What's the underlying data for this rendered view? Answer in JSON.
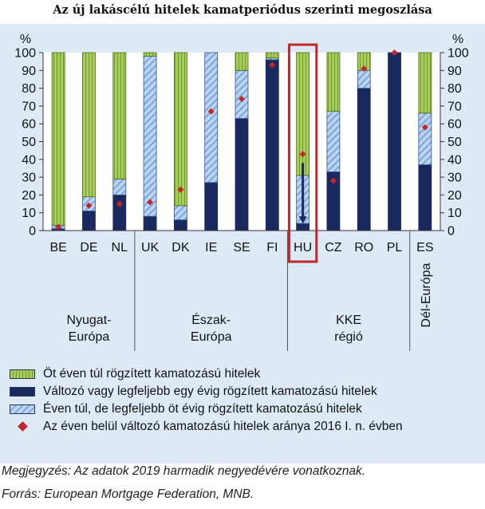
{
  "title": "Az új lakáscélú hitelek kamatperiódus szerinti megoszlása",
  "chart_data": {
    "type": "bar",
    "stacked": true,
    "unit": "%",
    "ylim": [
      0,
      100
    ],
    "yticks": [
      0,
      10,
      20,
      30,
      40,
      50,
      60,
      70,
      80,
      90,
      100
    ],
    "categories": [
      "BE",
      "DE",
      "NL",
      "UK",
      "DK",
      "IE",
      "SE",
      "FI",
      "HU",
      "CZ",
      "RO",
      "PL",
      "ES"
    ],
    "series": [
      {
        "name": "Változó vagy legfeljebb egy évig rögzített kamatozású hitelek",
        "color": "#1a2a5e",
        "values": [
          1,
          11,
          20,
          8,
          6,
          27,
          63,
          96,
          4,
          33,
          80,
          100,
          37
        ]
      },
      {
        "name": "Éven túl, de legfeljebb öt évig rögzített kamatozású hitelek",
        "color": "#a9c7ea",
        "values": [
          2,
          8,
          9,
          90,
          8,
          73,
          27,
          1,
          27,
          34,
          10,
          0,
          29
        ]
      },
      {
        "name": "Öt éven túl rögzített kamatozású hitelek",
        "color": "#a9cd5a",
        "values": [
          97,
          81,
          71,
          2,
          86,
          0,
          10,
          3,
          69,
          33,
          10,
          0,
          34
        ]
      }
    ],
    "markers": {
      "name": "Az éven belül változó kamatozású hitelek aránya 2016 I. n. évben",
      "color": "#c0282d",
      "values": [
        2,
        14,
        15,
        16,
        23,
        67,
        74,
        93,
        43,
        28,
        91,
        100,
        58
      ]
    },
    "groups": [
      {
        "label_lines": [
          "Nyugat-",
          "Európa"
        ],
        "members": [
          "BE",
          "DE",
          "NL"
        ]
      },
      {
        "label_lines": [
          "Észak-",
          "Európa"
        ],
        "members": [
          "UK",
          "DK",
          "IE",
          "SE",
          "FI"
        ]
      },
      {
        "label_lines": [
          "KKE",
          "régió"
        ],
        "members": [
          "HU",
          "CZ",
          "RO",
          "PL"
        ]
      },
      {
        "label_lines": [
          "Dél-Európa"
        ],
        "members": [
          "ES"
        ],
        "vertical": true
      }
    ],
    "highlight": {
      "category": "HU",
      "color": "#c0282d",
      "arrow_from": 38,
      "arrow_to": 4
    }
  },
  "legend": [
    {
      "key": "long",
      "label": "Öt éven túl rögzített kamatozású hitelek"
    },
    {
      "key": "var",
      "label": "Változó vagy legfeljebb egy évig rögzített kamatozású hitelek"
    },
    {
      "key": "mid",
      "label": "Éven túl, de legfeljebb öt évig rögzített kamatozású hitelek"
    },
    {
      "key": "marker",
      "label": "Az éven belül változó kamatozású hitelek aránya 2016 I. n. évben"
    }
  ],
  "note": "Megjegyzés: Az adatok 2019 harmadik negyedévére vonatkoznak.",
  "source": "Forrás: European Mortgage Federation, MNB."
}
